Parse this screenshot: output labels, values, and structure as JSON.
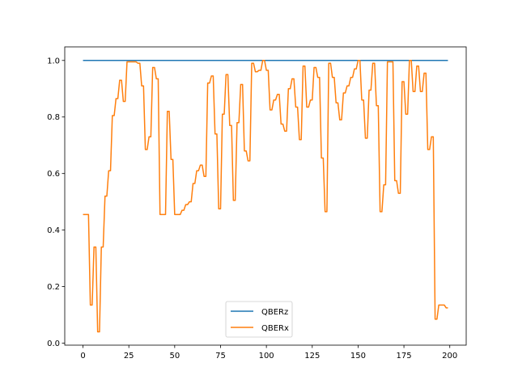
{
  "chart_data": {
    "type": "line",
    "title": "",
    "xlabel": "",
    "ylabel": "",
    "xlim": [
      -9.95,
      208.95
    ],
    "ylim": [
      -0.007,
      1.048
    ],
    "x_ticks": [
      0,
      25,
      50,
      75,
      100,
      125,
      150,
      175,
      200
    ],
    "y_ticks": [
      0.0,
      0.2,
      0.4,
      0.6,
      0.8,
      1.0
    ],
    "x_tick_labels": [
      "0",
      "25",
      "50",
      "75",
      "100",
      "125",
      "150",
      "175",
      "200"
    ],
    "y_tick_labels": [
      "0.0",
      "0.2",
      "0.4",
      "0.6",
      "0.8",
      "1.0"
    ],
    "grid": false,
    "legend_position": "lower-center",
    "series": [
      {
        "name": "QBERz",
        "color": "#1f77b4",
        "x": [
          0,
          199
        ],
        "y": [
          1.0,
          1.0
        ]
      },
      {
        "name": "QBERx",
        "color": "#ff7f0e",
        "x": [
          0,
          1,
          2,
          3,
          4,
          5,
          6,
          7,
          8,
          9,
          10,
          11,
          12,
          13,
          14,
          15,
          16,
          17,
          18,
          19,
          20,
          21,
          22,
          23,
          24,
          25,
          26,
          27,
          28,
          29,
          30,
          31,
          32,
          33,
          34,
          35,
          36,
          37,
          38,
          39,
          40,
          41,
          42,
          43,
          44,
          45,
          46,
          47,
          48,
          49,
          50,
          51,
          52,
          53,
          54,
          55,
          56,
          57,
          58,
          59,
          60,
          61,
          62,
          63,
          64,
          65,
          66,
          67,
          68,
          69,
          70,
          71,
          72,
          73,
          74,
          75,
          76,
          77,
          78,
          79,
          80,
          81,
          82,
          83,
          84,
          85,
          86,
          87,
          88,
          89,
          90,
          91,
          92,
          93,
          94,
          95,
          96,
          97,
          98,
          99,
          100,
          101,
          102,
          103,
          104,
          105,
          106,
          107,
          108,
          109,
          110,
          111,
          112,
          113,
          114,
          115,
          116,
          117,
          118,
          119,
          120,
          121,
          122,
          123,
          124,
          125,
          126,
          127,
          128,
          129,
          130,
          131,
          132,
          133,
          134,
          135,
          136,
          137,
          138,
          139,
          140,
          141,
          142,
          143,
          144,
          145,
          146,
          147,
          148,
          149,
          150,
          151,
          152,
          153,
          154,
          155,
          156,
          157,
          158,
          159,
          160,
          161,
          162,
          163,
          164,
          165,
          166,
          167,
          168,
          169,
          170,
          171,
          172,
          173,
          174,
          175,
          176,
          177,
          178,
          179,
          180,
          181,
          182,
          183,
          184,
          185,
          186,
          187,
          188,
          189,
          190,
          191,
          192,
          193,
          194,
          195,
          196,
          197,
          198,
          199
        ],
        "y": [
          0.455,
          0.455,
          0.455,
          0.455,
          0.135,
          0.135,
          0.34,
          0.34,
          0.04,
          0.04,
          0.34,
          0.34,
          0.52,
          0.52,
          0.61,
          0.61,
          0.805,
          0.805,
          0.865,
          0.865,
          0.93,
          0.93,
          0.855,
          0.855,
          0.995,
          0.995,
          0.995,
          0.995,
          0.995,
          0.995,
          0.99,
          0.99,
          0.91,
          0.91,
          0.685,
          0.685,
          0.73,
          0.73,
          0.975,
          0.975,
          0.935,
          0.935,
          0.455,
          0.455,
          0.455,
          0.455,
          0.82,
          0.82,
          0.65,
          0.65,
          0.455,
          0.455,
          0.455,
          0.455,
          0.47,
          0.47,
          0.49,
          0.49,
          0.5,
          0.5,
          0.565,
          0.565,
          0.61,
          0.61,
          0.63,
          0.63,
          0.59,
          0.59,
          0.92,
          0.92,
          0.945,
          0.945,
          0.74,
          0.74,
          0.475,
          0.475,
          0.81,
          0.81,
          0.95,
          0.95,
          0.77,
          0.77,
          0.505,
          0.505,
          0.78,
          0.78,
          0.915,
          0.915,
          0.68,
          0.68,
          0.645,
          0.645,
          0.99,
          0.99,
          0.96,
          0.96,
          0.965,
          0.965,
          1.0,
          1.0,
          0.965,
          0.965,
          0.825,
          0.825,
          0.86,
          0.86,
          0.88,
          0.88,
          0.775,
          0.775,
          0.75,
          0.75,
          0.9,
          0.9,
          0.935,
          0.935,
          0.835,
          0.835,
          0.72,
          0.72,
          0.98,
          0.98,
          0.835,
          0.835,
          0.86,
          0.86,
          0.975,
          0.975,
          0.94,
          0.94,
          0.655,
          0.655,
          0.465,
          0.465,
          0.99,
          0.99,
          0.94,
          0.94,
          0.85,
          0.85,
          0.79,
          0.79,
          0.885,
          0.885,
          0.91,
          0.91,
          0.94,
          0.94,
          0.97,
          0.97,
          1.0,
          1.0,
          0.86,
          0.86,
          0.725,
          0.725,
          0.895,
          0.895,
          0.99,
          0.99,
          0.84,
          0.84,
          0.465,
          0.465,
          0.56,
          0.56,
          0.995,
          0.995,
          0.995,
          0.995,
          0.575,
          0.575,
          0.53,
          0.53,
          0.925,
          0.925,
          0.81,
          0.81,
          1.0,
          1.0,
          0.89,
          0.89,
          0.98,
          0.98,
          0.89,
          0.89,
          0.955,
          0.955,
          0.685,
          0.685,
          0.73,
          0.73,
          0.085,
          0.085,
          0.135,
          0.135,
          0.135,
          0.135,
          0.125,
          0.125
        ]
      }
    ]
  }
}
